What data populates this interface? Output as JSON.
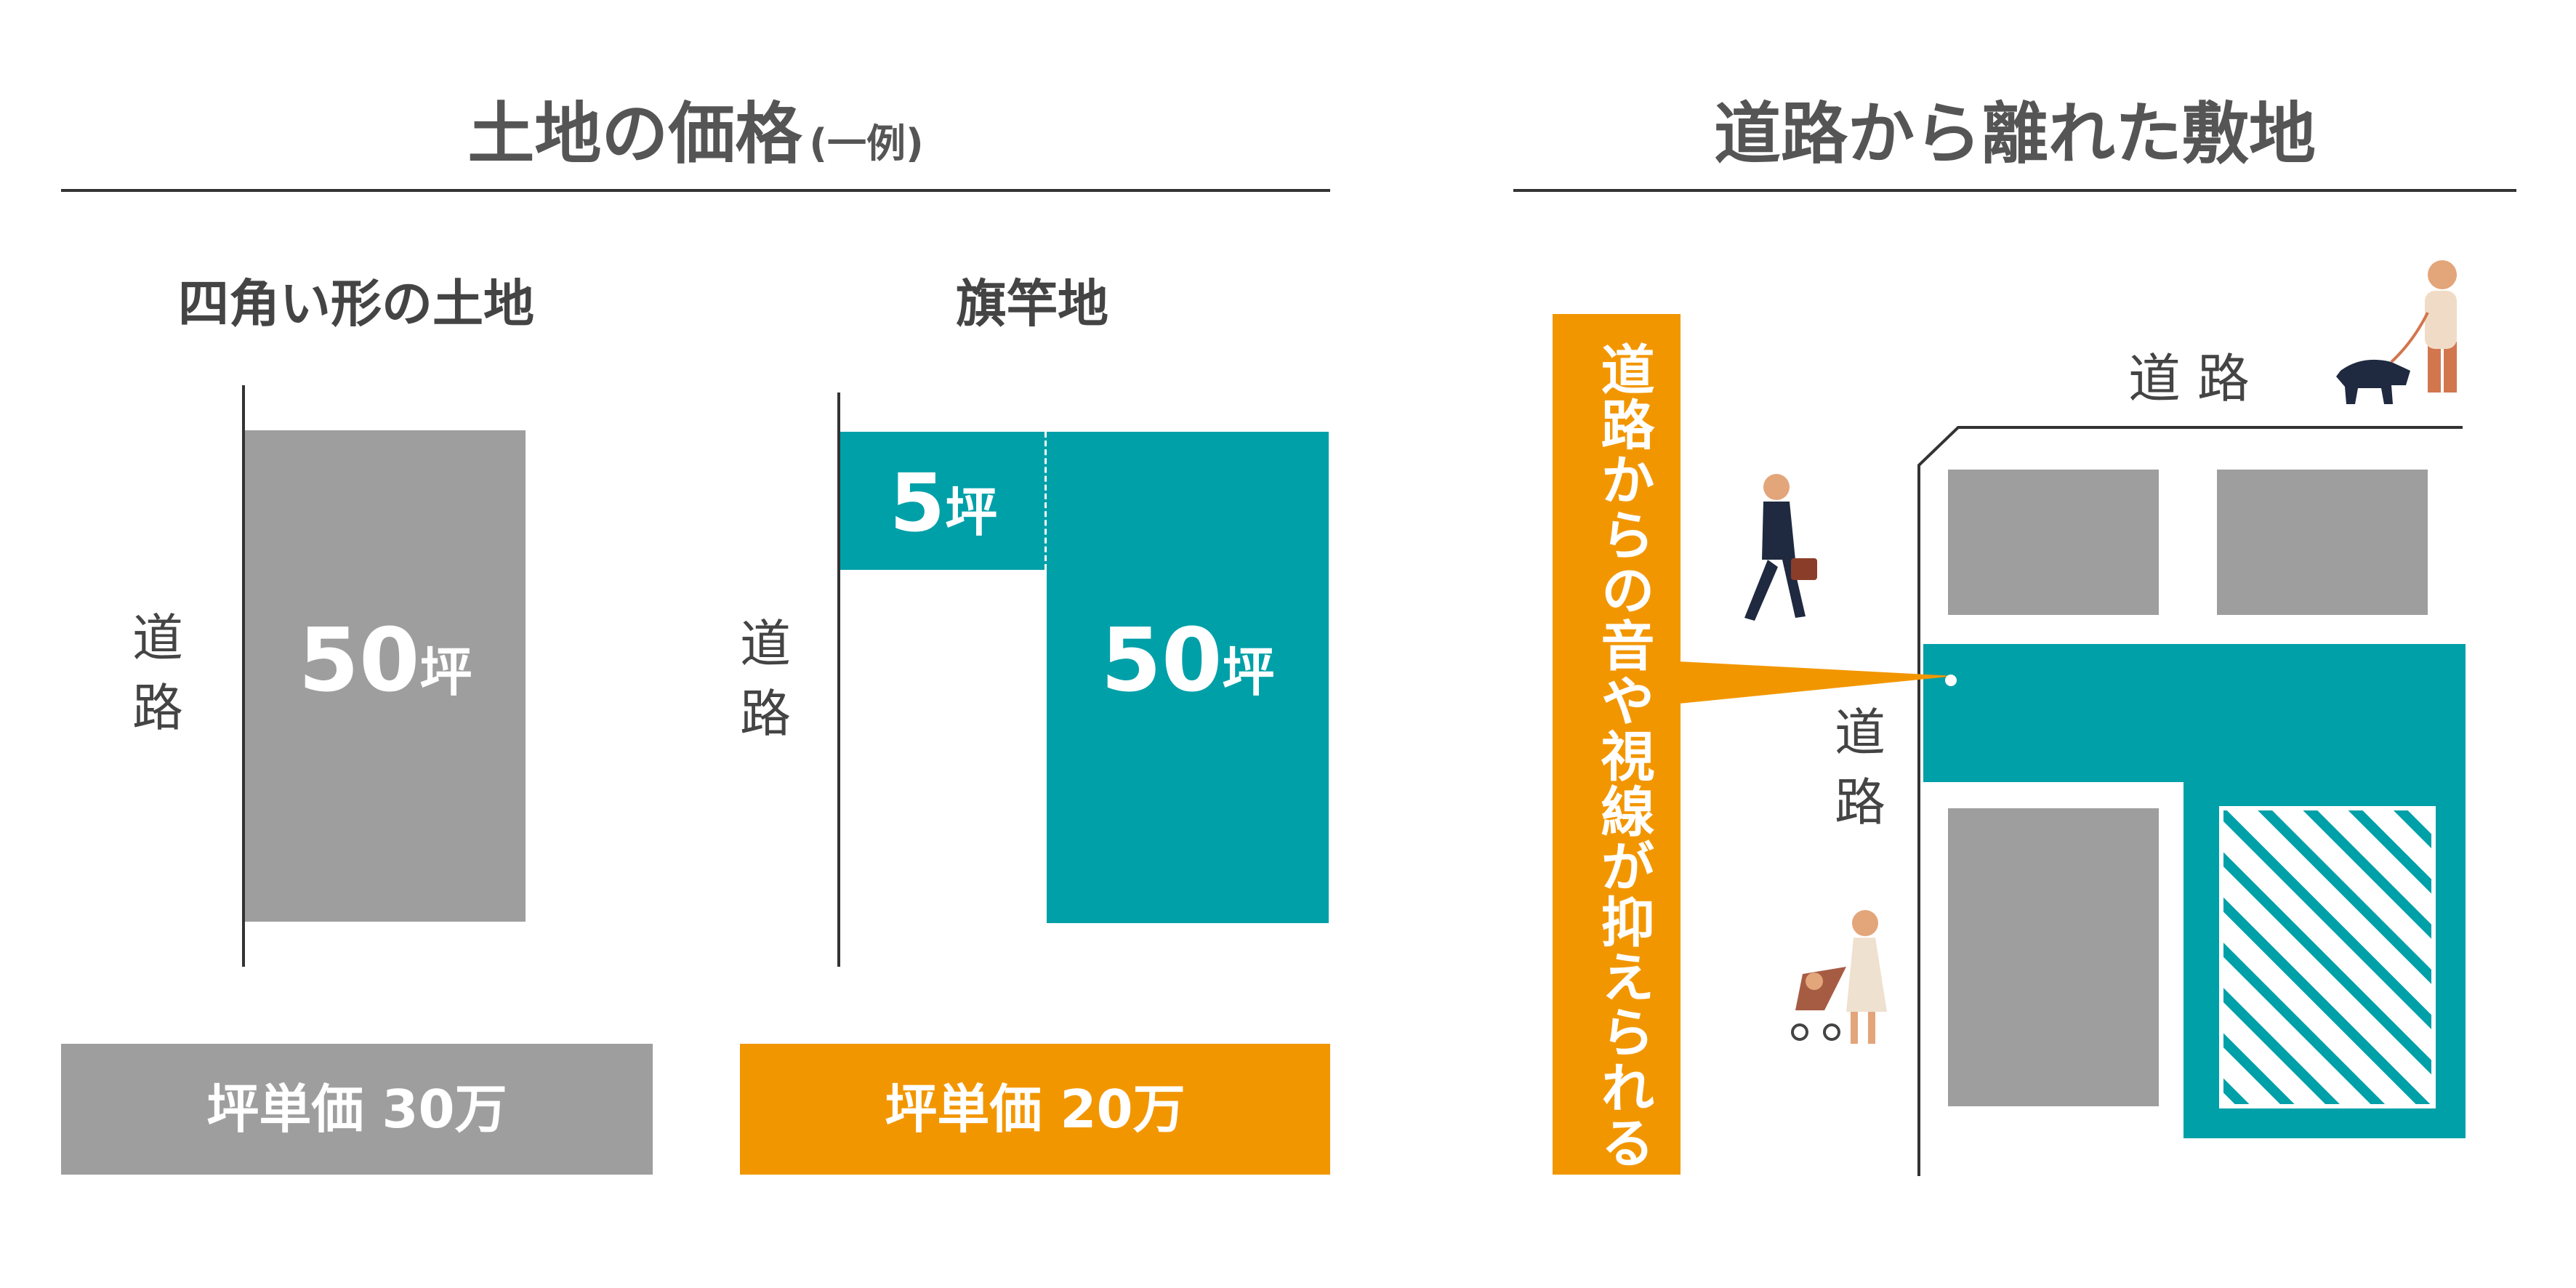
{
  "left_panel": {
    "title": "土地の価格",
    "title_note": "(一例)",
    "square_lot": {
      "heading": "四角い形の土地",
      "road_label_1": "道",
      "road_label_2": "路",
      "area_number": "50",
      "area_unit": "坪",
      "price": "坪単価 30万"
    },
    "flag_lot": {
      "heading": "旗竿地",
      "road_label_1": "道",
      "road_label_2": "路",
      "pole_number": "5",
      "pole_unit": "坪",
      "area_number": "50",
      "area_unit": "坪",
      "price": "坪単価 20万"
    }
  },
  "right_panel": {
    "title": "道路から離れた敷地",
    "road_top": "道 路",
    "road_side_1": "道",
    "road_side_2": "路",
    "callout": "道路からの音や視線が抑えられる"
  },
  "colors": {
    "gray": "#9e9e9e",
    "teal": "#00a0a8",
    "orange": "#f29600",
    "text": "#555555"
  }
}
